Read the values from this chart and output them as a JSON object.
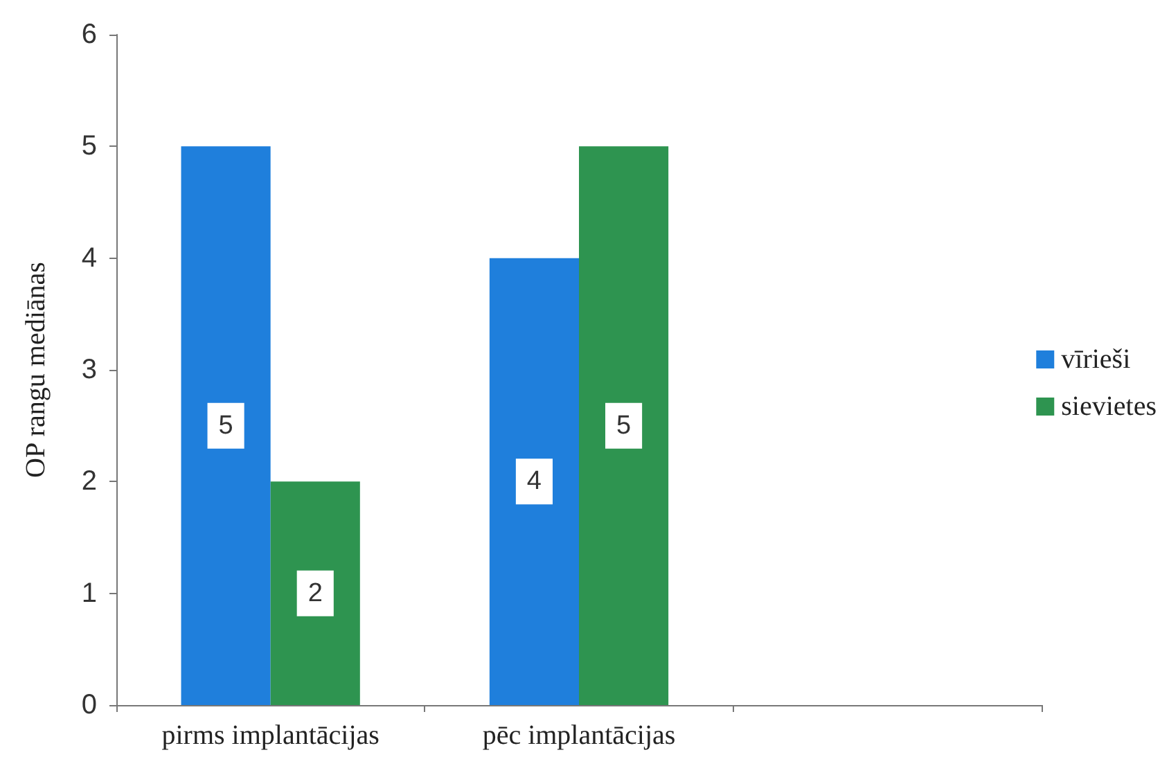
{
  "chart_data": {
    "type": "bar",
    "ylabel": "OP rangu mediānas",
    "categories": [
      "pirms implantācijas",
      "pēc implantācijas",
      null
    ],
    "series": [
      {
        "name": "vīrieši",
        "color": "#1f7fdc",
        "values": [
          5,
          4,
          null
        ]
      },
      {
        "name": "sievietes",
        "color": "#2e9450",
        "values": [
          2,
          5,
          null
        ]
      }
    ],
    "ylim": [
      0,
      6
    ],
    "yticks": [
      0,
      1,
      2,
      3,
      4,
      5,
      6
    ],
    "data_labels": true,
    "legend": "right"
  }
}
